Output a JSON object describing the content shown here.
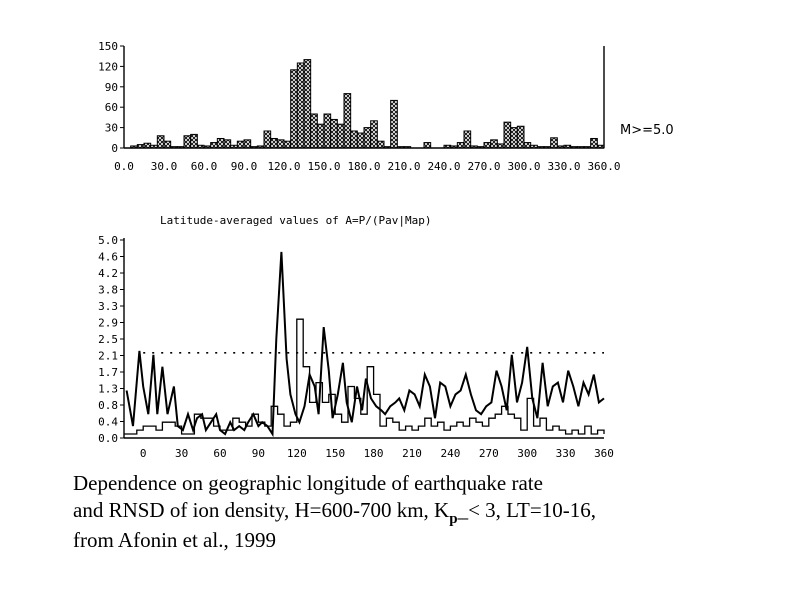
{
  "chart_data": [
    {
      "type": "bar",
      "title": "",
      "annotation": "M>=5.0",
      "xlim": [
        0,
        360
      ],
      "ylim": [
        0,
        150
      ],
      "x_ticks": [
        "0.0",
        "30.0",
        "60.0",
        "90.0",
        "120.0",
        "150.0",
        "180.0",
        "210.0",
        "240.0",
        "270.0",
        "300.0",
        "330.0",
        "360.0"
      ],
      "y_ticks": [
        "0",
        "30",
        "60",
        "90",
        "120",
        "150"
      ],
      "bin_width": 5,
      "bin_starts": [
        5,
        10,
        15,
        20,
        25,
        30,
        35,
        40,
        45,
        50,
        55,
        60,
        65,
        70,
        75,
        80,
        85,
        90,
        95,
        100,
        105,
        110,
        115,
        120,
        125,
        130,
        135,
        140,
        145,
        150,
        155,
        160,
        165,
        170,
        175,
        180,
        185,
        190,
        195,
        200,
        205,
        210,
        215,
        220,
        225,
        230,
        235,
        240,
        245,
        250,
        255,
        260,
        265,
        270,
        275,
        280,
        285,
        290,
        295,
        300,
        305,
        310,
        315,
        320,
        325,
        330,
        335,
        340,
        345,
        350,
        355
      ],
      "values": [
        3,
        5,
        7,
        4,
        18,
        10,
        2,
        2,
        18,
        20,
        4,
        3,
        8,
        14,
        12,
        4,
        10,
        12,
        2,
        3,
        25,
        14,
        12,
        10,
        115,
        125,
        130,
        50,
        35,
        50,
        42,
        35,
        80,
        25,
        22,
        30,
        40,
        10,
        2,
        70,
        2,
        2,
        0,
        0,
        8,
        0,
        0,
        4,
        3,
        8,
        25,
        3,
        2,
        8,
        12,
        6,
        38,
        30,
        32,
        8,
        4,
        2,
        2,
        15,
        3,
        4,
        2,
        2,
        2,
        14,
        4
      ],
      "pattern": "cross-hatch"
    },
    {
      "type": "line",
      "title": "Latitude-averaged values of A=P/(Pav|Map)",
      "xlim": [
        -15,
        360
      ],
      "ylim": [
        0,
        5
      ],
      "x_ticks": [
        "0",
        "30",
        "60",
        "90",
        "120",
        "150",
        "180",
        "210",
        "240",
        "270",
        "300",
        "330",
        "360"
      ],
      "y_ticks": [
        "0.0",
        "0.4",
        "0.8",
        "1.3",
        "1.7",
        "2.1",
        "2.5",
        "2.9",
        "3.3",
        "3.8",
        "4.2",
        "4.6",
        "5.0"
      ],
      "threshold_line": 2.15,
      "series": [
        {
          "style": "jagged",
          "x": [
            -13,
            -8,
            -3,
            0,
            4,
            8,
            11,
            15,
            19,
            24,
            27,
            31,
            35,
            39,
            42,
            46,
            49,
            53,
            57,
            60,
            64,
            68,
            71,
            75,
            79,
            82,
            86,
            90,
            93,
            97,
            101,
            104,
            108,
            112,
            115,
            119,
            122,
            126,
            130,
            134,
            137,
            141,
            145,
            148,
            152,
            156,
            159,
            163,
            167,
            171,
            174,
            178,
            182,
            186,
            189,
            193,
            197,
            200,
            204,
            208,
            212,
            216,
            220,
            224,
            228,
            232,
            236,
            240,
            244,
            248,
            252,
            256,
            260,
            264,
            268,
            272,
            276,
            280,
            284,
            288,
            292,
            296,
            300,
            304,
            308,
            312,
            316,
            320,
            324,
            328,
            332,
            336,
            340,
            344,
            348,
            352,
            356,
            360
          ],
          "y": [
            1.2,
            0.3,
            2.2,
            1.3,
            0.6,
            2.1,
            0.6,
            1.8,
            0.6,
            1.3,
            0.3,
            0.2,
            0.6,
            0.2,
            0.5,
            0.6,
            0.2,
            0.4,
            0.6,
            0.2,
            0.1,
            0.4,
            0.2,
            0.3,
            0.2,
            0.4,
            0.6,
            0.3,
            0.4,
            0.3,
            0.1,
            2.5,
            4.7,
            2.0,
            1.1,
            0.6,
            0.4,
            0.8,
            1.6,
            1.3,
            0.6,
            2.8,
            1.7,
            0.5,
            1.1,
            1.9,
            0.9,
            0.4,
            1.3,
            0.7,
            1.5,
            1.0,
            0.8,
            0.7,
            0.6,
            0.8,
            0.9,
            1.0,
            0.7,
            1.2,
            1.1,
            0.8,
            1.6,
            1.3,
            0.5,
            1.4,
            1.3,
            0.8,
            1.1,
            1.2,
            1.6,
            1.1,
            0.7,
            0.6,
            0.8,
            0.9,
            1.7,
            1.3,
            0.7,
            2.1,
            0.9,
            1.4,
            2.3,
            1.0,
            0.5,
            1.9,
            0.8,
            1.3,
            1.4,
            0.9,
            1.7,
            1.3,
            0.8,
            1.4,
            1.1,
            1.6,
            0.9,
            1.0
          ]
        },
        {
          "style": "step",
          "x": [
            -15,
            -5,
            0,
            10,
            15,
            25,
            30,
            40,
            45,
            55,
            60,
            70,
            75,
            80,
            85,
            90,
            95,
            100,
            105,
            110,
            115,
            120,
            125,
            130,
            135,
            140,
            145,
            150,
            155,
            160,
            165,
            170,
            175,
            180,
            185,
            190,
            195,
            200,
            205,
            210,
            215,
            220,
            225,
            230,
            235,
            240,
            245,
            250,
            255,
            260,
            265,
            270,
            275,
            280,
            285,
            290,
            295,
            300,
            305,
            310,
            315,
            320,
            325,
            330,
            335,
            340,
            345,
            350,
            355,
            360
          ],
          "y": [
            0.1,
            0.2,
            0.3,
            0.2,
            0.4,
            0.3,
            0.1,
            0.6,
            0.5,
            0.3,
            0.2,
            0.5,
            0.4,
            0.3,
            0.6,
            0.4,
            0.3,
            0.8,
            0.6,
            0.3,
            0.4,
            3.0,
            1.8,
            0.9,
            1.4,
            0.9,
            1.1,
            0.6,
            0.4,
            1.3,
            1.0,
            0.6,
            1.8,
            1.1,
            0.3,
            0.5,
            0.4,
            0.2,
            0.3,
            0.2,
            0.3,
            0.5,
            0.3,
            0.4,
            0.2,
            0.3,
            0.4,
            0.3,
            0.5,
            0.4,
            0.3,
            0.5,
            0.6,
            0.8,
            0.6,
            0.5,
            0.2,
            1.0,
            0.3,
            0.5,
            0.2,
            0.3,
            0.2,
            0.1,
            0.2,
            0.1,
            0.3,
            0.1,
            0.2,
            0.1
          ]
        }
      ]
    }
  ],
  "caption": {
    "line1": "Dependence on geographic longitude of earthquake rate",
    "line2_pre": "and RNSD of ion density, H=600-700 km, K",
    "line2_sub": "p",
    "line2_post": "_< 3, LT=10-16,",
    "line3": "from Afonin et al., 1999"
  }
}
